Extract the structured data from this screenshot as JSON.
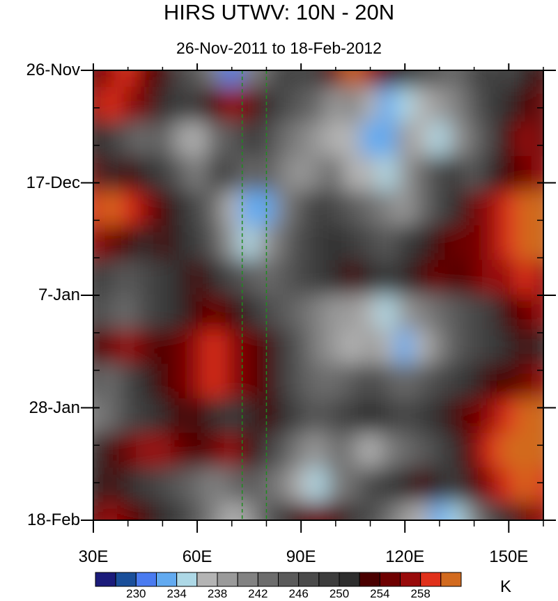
{
  "chart_data": {
    "type": "heatmap",
    "title": "HIRS UTWV: 10N - 20N",
    "subtitle": "26-Nov-2011 to 18-Feb-2012",
    "xlabel": "",
    "ylabel": "",
    "x_range": [
      30,
      160
    ],
    "x_ticks": [
      "30E",
      "60E",
      "90E",
      "120E",
      "150E"
    ],
    "x_tick_values": [
      30,
      60,
      90,
      120,
      150
    ],
    "y_range": [
      "2011-11-26",
      "2012-02-18"
    ],
    "y_ticks": [
      "26-Nov",
      "17-Dec",
      "7-Jan",
      "28-Jan",
      "18-Feb"
    ],
    "y_tick_values": [
      "2011-11-26",
      "2011-12-17",
      "2012-01-07",
      "2012-01-28",
      "2012-02-18"
    ],
    "reference_lines_lon": [
      73,
      80
    ],
    "reference_line_color": "#1e8c1e",
    "colorbar": {
      "units": "K",
      "labels": [
        "230",
        "234",
        "238",
        "242",
        "246",
        "250",
        "254",
        "258"
      ],
      "label_values": [
        230,
        234,
        238,
        242,
        246,
        250,
        254,
        258
      ],
      "levels": [
        228,
        230,
        232,
        234,
        236,
        238,
        240,
        242,
        244,
        246,
        248,
        250,
        252,
        254,
        256,
        258,
        260
      ],
      "colors": [
        "#1b1b7a",
        "#1a4f9a",
        "#4a7bf0",
        "#62aaf0",
        "#add8e6",
        "#b4b4b4",
        "#9a9a9a",
        "#828282",
        "#6c6c6c",
        "#5a5a5a",
        "#4a4a4a",
        "#3c3c3c",
        "#2e2e2e",
        "#4a0000",
        "#6e0000",
        "#980a0a",
        "#e0301a",
        "#d26a1e"
      ]
    },
    "values": [
      [
        254,
        256,
        258,
        254,
        252,
        246,
        244,
        240,
        230,
        240,
        242,
        248,
        246,
        248,
        254,
        260,
        256,
        252,
        250,
        246,
        244,
        242,
        246,
        248,
        246,
        250,
        252
      ],
      [
        256,
        258,
        256,
        254,
        250,
        248,
        248,
        252,
        256,
        254,
        250,
        246,
        244,
        242,
        238,
        240,
        236,
        232,
        234,
        236,
        238,
        240,
        244,
        248,
        250,
        252,
        254
      ],
      [
        250,
        248,
        244,
        242,
        244,
        238,
        236,
        242,
        244,
        248,
        246,
        242,
        240,
        238,
        236,
        236,
        232,
        232,
        238,
        236,
        234,
        238,
        242,
        246,
        252,
        256,
        254
      ],
      [
        254,
        250,
        252,
        250,
        248,
        244,
        240,
        246,
        246,
        242,
        244,
        240,
        238,
        240,
        242,
        236,
        236,
        234,
        238,
        242,
        246,
        248,
        244,
        250,
        252,
        254,
        256
      ],
      [
        258,
        260,
        258,
        256,
        252,
        250,
        246,
        242,
        236,
        232,
        232,
        240,
        244,
        248,
        246,
        244,
        242,
        240,
        238,
        242,
        246,
        250,
        254,
        256,
        258,
        260,
        260
      ],
      [
        256,
        254,
        252,
        250,
        252,
        250,
        248,
        244,
        238,
        234,
        238,
        242,
        246,
        248,
        250,
        248,
        246,
        244,
        248,
        250,
        252,
        254,
        254,
        256,
        258,
        260,
        260
      ],
      [
        248,
        246,
        244,
        246,
        248,
        250,
        252,
        250,
        246,
        244,
        242,
        244,
        246,
        248,
        250,
        252,
        250,
        248,
        250,
        252,
        254,
        252,
        254,
        256,
        256,
        258,
        256
      ],
      [
        246,
        244,
        242,
        246,
        248,
        250,
        252,
        254,
        252,
        250,
        246,
        244,
        242,
        240,
        238,
        238,
        236,
        234,
        238,
        240,
        242,
        244,
        246,
        248,
        252,
        254,
        256
      ],
      [
        252,
        254,
        256,
        254,
        252,
        254,
        256,
        258,
        256,
        254,
        252,
        248,
        244,
        240,
        238,
        236,
        238,
        236,
        232,
        236,
        240,
        244,
        246,
        248,
        250,
        252,
        250
      ],
      [
        244,
        242,
        246,
        250,
        252,
        254,
        256,
        258,
        256,
        254,
        252,
        248,
        244,
        242,
        242,
        244,
        246,
        244,
        242,
        244,
        246,
        248,
        250,
        252,
        252,
        254,
        256
      ],
      [
        240,
        242,
        246,
        248,
        250,
        252,
        252,
        250,
        248,
        250,
        252,
        250,
        246,
        244,
        246,
        248,
        250,
        248,
        246,
        248,
        250,
        252,
        254,
        256,
        258,
        260,
        260
      ],
      [
        248,
        252,
        254,
        256,
        256,
        254,
        252,
        254,
        256,
        252,
        248,
        244,
        240,
        238,
        242,
        240,
        236,
        240,
        242,
        244,
        246,
        250,
        254,
        258,
        260,
        260,
        260
      ],
      [
        250,
        252,
        250,
        248,
        246,
        244,
        242,
        240,
        242,
        244,
        242,
        240,
        236,
        234,
        240,
        242,
        246,
        248,
        250,
        252,
        250,
        248,
        252,
        256,
        258,
        260,
        258
      ],
      [
        254,
        256,
        254,
        252,
        250,
        248,
        244,
        240,
        236,
        238,
        244,
        248,
        252,
        254,
        252,
        248,
        246,
        242,
        238,
        236,
        232,
        234,
        240,
        246,
        250,
        254,
        256
      ]
    ]
  }
}
